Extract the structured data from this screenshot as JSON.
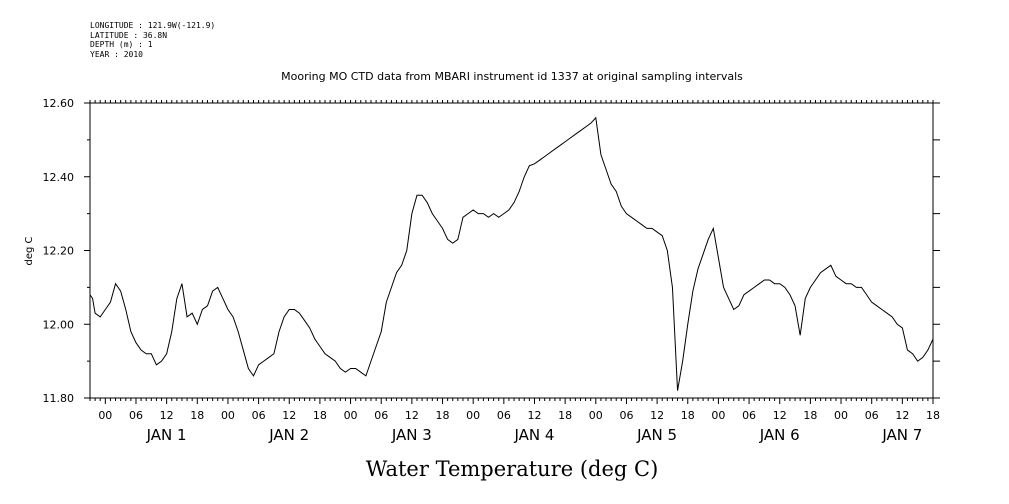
{
  "header": {
    "longitude": "LONGITUDE : 121.9W(-121.9)",
    "latitude": "LATITUDE : 36.8N",
    "depth": "DEPTH (m) : 1",
    "year": "YEAR : 2010"
  },
  "chart_data": {
    "type": "line",
    "title": "Mooring MO CTD data from MBARI instrument id 1337 at original sampling intervals",
    "xlabel": "Water Temperature (deg C)",
    "ylabel": "deg C",
    "ylim": [
      11.8,
      12.6
    ],
    "yticks": [
      "11.80",
      "12.00",
      "12.20",
      "12.40",
      "12.60"
    ],
    "x_unit": "hours since Dec 31 2009 21:00",
    "xlim": [
      0,
      165
    ],
    "hour_tick_labels": [
      "00",
      "06",
      "12",
      "18",
      "00",
      "06",
      "12",
      "18",
      "00",
      "06",
      "12",
      "18",
      "00",
      "06",
      "12",
      "18",
      "00",
      "06",
      "12",
      "18",
      "00",
      "06",
      "12",
      "18",
      "00",
      "06",
      "12",
      "18",
      "00",
      "06",
      "12",
      "18",
      "00",
      "06",
      "12",
      "18"
    ],
    "day_labels": [
      "JAN 1",
      "JAN 2",
      "JAN 3",
      "JAN 4",
      "JAN 5",
      "JAN 6",
      "JAN 7"
    ],
    "grid": false,
    "color": "#000000",
    "series": [
      {
        "values_x": [
          0,
          0.5,
          1,
          2,
          3,
          4,
          5,
          6,
          7,
          8,
          9,
          10,
          11,
          12,
          13,
          14,
          15,
          16,
          17,
          18,
          19,
          20,
          21,
          22,
          23,
          24,
          25,
          26,
          27,
          28,
          29,
          30,
          31,
          32,
          33,
          34,
          35,
          36,
          37,
          38,
          39,
          40,
          41,
          42,
          43,
          44,
          45,
          46,
          47,
          48,
          49,
          50,
          51,
          52,
          53,
          54,
          55,
          56,
          57,
          58,
          59,
          60,
          61,
          62,
          63,
          64,
          65,
          66,
          67,
          68,
          69,
          70,
          71,
          72,
          73,
          74,
          75,
          76,
          77,
          78,
          79,
          80,
          81,
          82,
          83,
          84,
          85,
          86,
          87,
          88,
          89,
          90,
          91,
          92,
          93,
          94,
          95,
          96,
          97,
          98,
          99,
          100,
          101,
          102,
          103,
          104,
          105,
          106,
          107,
          108,
          109,
          110,
          111,
          112,
          113,
          114,
          115,
          116,
          117,
          118,
          119,
          120,
          121,
          122,
          123,
          124,
          125,
          126,
          127,
          128,
          129,
          130,
          131,
          132,
          133,
          134,
          135,
          136,
          137,
          138,
          139,
          140,
          141,
          142,
          143,
          144,
          145,
          146,
          147,
          148,
          149,
          150,
          151,
          152,
          153,
          154,
          155,
          156,
          157,
          158,
          159,
          160,
          161,
          162,
          163,
          164,
          165
        ],
        "values": [
          12.08,
          12.07,
          12.03,
          12.02,
          12.04,
          12.06,
          12.11,
          12.09,
          12.04,
          11.98,
          11.95,
          11.93,
          11.92,
          11.92,
          11.89,
          11.9,
          11.92,
          11.98,
          12.07,
          12.11,
          12.02,
          12.03,
          12.0,
          12.04,
          12.05,
          12.09,
          12.1,
          12.07,
          12.04,
          12.02,
          11.98,
          11.93,
          11.88,
          11.86,
          11.89,
          11.9,
          11.91,
          11.92,
          11.98,
          12.02,
          12.04,
          12.04,
          12.03,
          12.01,
          11.99,
          11.96,
          11.94,
          11.92,
          11.91,
          11.9,
          11.88,
          11.87,
          11.88,
          11.88,
          11.87,
          11.86,
          11.9,
          11.94,
          11.98,
          12.06,
          12.1,
          12.14,
          12.16,
          12.2,
          12.3,
          12.35,
          12.35,
          12.33,
          12.3,
          12.28,
          12.26,
          12.23,
          12.22,
          12.23,
          12.29,
          12.3,
          12.31,
          12.3,
          12.3,
          12.29,
          12.3,
          12.29,
          12.3,
          12.31,
          12.33,
          12.36,
          12.4,
          12.43,
          12.435,
          12.445,
          12.455,
          12.465,
          12.475,
          12.485,
          12.495,
          12.505,
          12.515,
          12.525,
          12.535,
          12.545,
          12.56,
          12.46,
          12.42,
          12.38,
          12.36,
          12.32,
          12.3,
          12.29,
          12.28,
          12.27,
          12.26,
          12.26,
          12.25,
          12.24,
          12.2,
          12.1,
          11.82,
          11.9,
          12.0,
          12.09,
          12.15,
          12.19,
          12.23,
          12.26,
          12.18,
          12.1,
          12.07,
          12.04,
          12.05,
          12.08,
          12.09,
          12.1,
          12.11,
          12.12,
          12.12,
          12.11,
          12.11,
          12.1,
          12.08,
          12.05,
          11.97,
          12.07,
          12.1,
          12.12,
          12.14,
          12.15,
          12.16,
          12.13,
          12.12,
          12.11,
          12.11,
          12.1,
          12.1,
          12.08,
          12.06,
          12.05,
          12.04,
          12.03,
          12.02,
          12.0,
          11.99,
          11.93,
          11.92,
          11.9,
          11.91,
          11.93,
          11.96
        ]
      }
    ]
  }
}
